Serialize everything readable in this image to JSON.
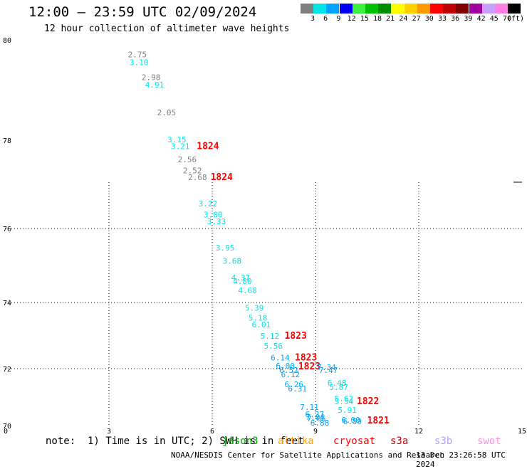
{
  "header": {
    "title": "12:00 – 23:59 UTC 02/09/2024",
    "subtitle": "12 hour collection of altimeter wave heights"
  },
  "color_scale": {
    "unit": "(ft)",
    "bins": [
      {
        "label": "3",
        "color": "#7f7f7f"
      },
      {
        "label": "6",
        "color": "#00e5e5"
      },
      {
        "label": "9",
        "color": "#00a5ff"
      },
      {
        "label": "12",
        "color": "#0000f0"
      },
      {
        "label": "15",
        "color": "#40f040"
      },
      {
        "label": "18",
        "color": "#00c000"
      },
      {
        "label": "21",
        "color": "#008c00"
      },
      {
        "label": "24",
        "color": "#ffff00"
      },
      {
        "label": "27",
        "color": "#ffd000"
      },
      {
        "label": "30",
        "color": "#ff9900"
      },
      {
        "label": "33",
        "color": "#ff0000"
      },
      {
        "label": "36",
        "color": "#c00000"
      },
      {
        "label": "39",
        "color": "#800000"
      },
      {
        "label": "42",
        "color": "#a000a0"
      },
      {
        "label": "45",
        "color": "#c8a0ff"
      },
      {
        "label": "70",
        "color": "#ff80e0"
      },
      {
        "label": "",
        "color": "#000000"
      }
    ]
  },
  "note": "note:  1) Time is in UTC; 2) SWH is in feet",
  "satellites": [
    {
      "name": "jason3",
      "color": "#00a000"
    },
    {
      "name": "altika",
      "color": "#ff9900"
    },
    {
      "name": "cryosat",
      "color": "#ff0000"
    },
    {
      "name": "s3a",
      "color": "#c00000"
    },
    {
      "name": "s3b",
      "color": "#b0a0ff"
    },
    {
      "name": "swot",
      "color": "#ff90e0"
    }
  ],
  "footer": {
    "credit": "NOAA/NESDIS Center for Satellite Applications and Research",
    "timestamp": "13 Dec 23:26:58 UTC 2024"
  },
  "chart_data": {
    "type": "scatter",
    "xlim": [
      0,
      15
    ],
    "ylim": [
      70,
      80
    ],
    "x_ticks": [
      "0",
      "3",
      "6",
      "9",
      "12",
      "15"
    ],
    "y_ticks": [
      "70",
      "72",
      "74",
      "76",
      "78",
      "80"
    ],
    "grid": true,
    "points": [
      {
        "x": 3.55,
        "y": 79.65,
        "label": "2.75",
        "color": "#7f7f7f"
      },
      {
        "x": 3.6,
        "y": 79.5,
        "label": "3.10",
        "color": "#00e5e5"
      },
      {
        "x": 3.95,
        "y": 79.2,
        "label": "2.98",
        "color": "#7f7f7f"
      },
      {
        "x": 4.05,
        "y": 79.05,
        "label": "4.91",
        "color": "#00e5e5"
      },
      {
        "x": 4.4,
        "y": 78.5,
        "label": "2.05",
        "color": "#7f7f7f"
      },
      {
        "x": 4.7,
        "y": 77.95,
        "label": "3.15",
        "color": "#00e5e5"
      },
      {
        "x": 4.8,
        "y": 77.8,
        "label": "3.21",
        "color": "#00e5e5"
      },
      {
        "x": 5.55,
        "y": 77.8,
        "label": "1824",
        "color": "#ff0000",
        "bold": true
      },
      {
        "x": 5.0,
        "y": 77.5,
        "label": "2.56",
        "color": "#7f7f7f"
      },
      {
        "x": 5.15,
        "y": 77.25,
        "label": "2.52",
        "color": "#7f7f7f"
      },
      {
        "x": 5.3,
        "y": 77.1,
        "label": "2.68",
        "color": "#7f7f7f"
      },
      {
        "x": 5.95,
        "y": 77.1,
        "label": "1824",
        "color": "#ff0000",
        "bold": true
      },
      {
        "x": 5.6,
        "y": 76.5,
        "label": "3.22",
        "color": "#00e5e5"
      },
      {
        "x": 5.75,
        "y": 76.25,
        "label": "3.80",
        "color": "#00e5e5"
      },
      {
        "x": 5.85,
        "y": 76.1,
        "label": "3.33",
        "color": "#00e5e5"
      },
      {
        "x": 6.1,
        "y": 75.4,
        "label": "3.95",
        "color": "#00e5e5"
      },
      {
        "x": 6.3,
        "y": 75.05,
        "label": "3.68",
        "color": "#00e5e5"
      },
      {
        "x": 6.55,
        "y": 74.6,
        "label": "4.37",
        "color": "#00e5e5"
      },
      {
        "x": 6.6,
        "y": 74.5,
        "label": "4.80",
        "color": "#00e5e5"
      },
      {
        "x": 6.75,
        "y": 74.25,
        "label": "4.68",
        "color": "#00e5e5"
      },
      {
        "x": 6.95,
        "y": 73.75,
        "label": "5.39",
        "color": "#00e5e5"
      },
      {
        "x": 7.05,
        "y": 73.45,
        "label": "5.18",
        "color": "#00e5e5"
      },
      {
        "x": 7.15,
        "y": 73.25,
        "label": "6.01",
        "color": "#00e5e5"
      },
      {
        "x": 7.4,
        "y": 72.9,
        "label": "5.12",
        "color": "#00e5e5"
      },
      {
        "x": 8.1,
        "y": 72.9,
        "label": "1823",
        "color": "#ff0000",
        "bold": true
      },
      {
        "x": 7.5,
        "y": 72.6,
        "label": "5.56",
        "color": "#00e5e5"
      },
      {
        "x": 7.7,
        "y": 72.25,
        "label": "6.14",
        "color": "#00a5ff"
      },
      {
        "x": 8.4,
        "y": 72.25,
        "label": "1823",
        "color": "#ff0000",
        "bold": true
      },
      {
        "x": 7.85,
        "y": 72.0,
        "label": "6.00",
        "color": "#00a5ff"
      },
      {
        "x": 8.5,
        "y": 71.98,
        "label": "1823",
        "color": "#ff0000",
        "bold": true
      },
      {
        "x": 7.95,
        "y": 71.85,
        "label": "6.52",
        "color": "#00a5ff"
      },
      {
        "x": 8.0,
        "y": 71.7,
        "label": "6.12",
        "color": "#00a5ff"
      },
      {
        "x": 8.1,
        "y": 71.35,
        "label": "6.26",
        "color": "#00a5ff"
      },
      {
        "x": 8.2,
        "y": 71.2,
        "label": "6.31",
        "color": "#00a5ff"
      },
      {
        "x": 8.55,
        "y": 70.55,
        "label": "7.11",
        "color": "#00a5ff"
      },
      {
        "x": 8.7,
        "y": 70.3,
        "label": "6.27",
        "color": "#00a5ff"
      },
      {
        "x": 8.72,
        "y": 70.2,
        "label": "7.04",
        "color": "#00a5ff"
      },
      {
        "x": 8.75,
        "y": 70.15,
        "label": "7.66",
        "color": "#00a5ff"
      },
      {
        "x": 8.85,
        "y": 70.0,
        "label": "6.88",
        "color": "#00a5ff"
      },
      {
        "x": 9.05,
        "y": 71.95,
        "label": "7.34",
        "color": "#00a5ff"
      },
      {
        "x": 9.1,
        "y": 71.85,
        "label": "7.47",
        "color": "#00a5ff"
      },
      {
        "x": 9.35,
        "y": 71.4,
        "label": "6.48",
        "color": "#00e5e5"
      },
      {
        "x": 9.4,
        "y": 71.25,
        "label": "5.87",
        "color": "#00e5e5"
      },
      {
        "x": 9.55,
        "y": 70.85,
        "label": "5.62",
        "color": "#00e5e5"
      },
      {
        "x": 9.55,
        "y": 70.75,
        "label": "5.54",
        "color": "#00e5e5"
      },
      {
        "x": 10.2,
        "y": 70.75,
        "label": "1822",
        "color": "#ff0000",
        "bold": true
      },
      {
        "x": 9.65,
        "y": 70.45,
        "label": "5.91",
        "color": "#00e5e5"
      },
      {
        "x": 9.75,
        "y": 70.1,
        "label": "6.00",
        "color": "#00a5ff"
      },
      {
        "x": 9.8,
        "y": 70.05,
        "label": "6.59",
        "color": "#00a5ff"
      },
      {
        "x": 10.5,
        "y": 70.07,
        "label": "1821",
        "color": "#ff0000",
        "bold": true
      }
    ]
  }
}
